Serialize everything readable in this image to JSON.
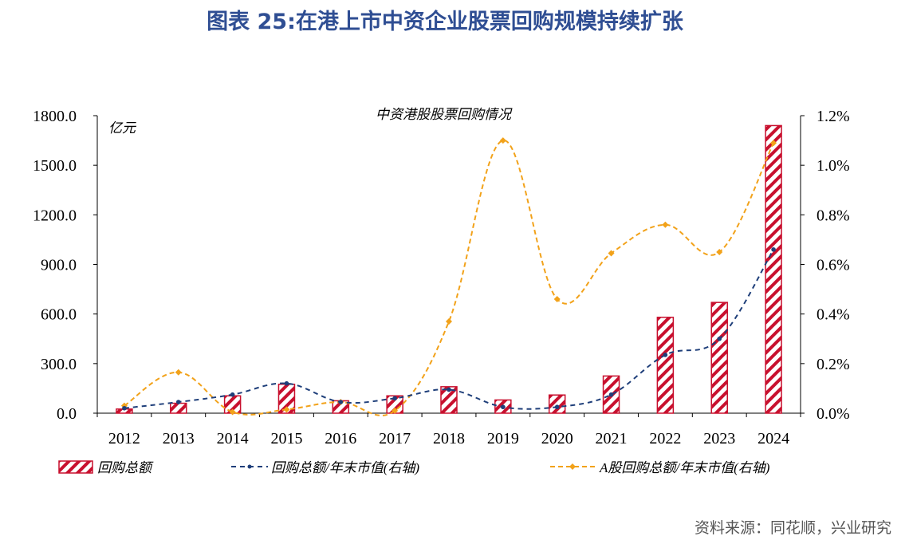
{
  "figure_title": "图表 25:在港上市中资企业股票回购规模持续扩张",
  "source": "资料来源：同花顺，兴业研究",
  "colors": {
    "title": "#2f4e93",
    "bar_stroke": "#c8102e",
    "bar_hatch": "#c8102e",
    "line_blue": "#1f3f7a",
    "line_orange": "#f2a21a",
    "axis": "#000000",
    "source": "#555555"
  },
  "chart_data": {
    "type": "bar",
    "title": "中资港股股票回购情况",
    "left_unit": "亿元",
    "categories": [
      "2012",
      "2013",
      "2014",
      "2015",
      "2016",
      "2017",
      "2018",
      "2019",
      "2020",
      "2021",
      "2022",
      "2023",
      "2024"
    ],
    "left_axis": {
      "min": 0,
      "max": 1800,
      "ticks": [
        "0.0",
        "300.0",
        "600.0",
        "900.0",
        "1200.0",
        "1500.0",
        "1800.0"
      ]
    },
    "right_axis": {
      "min": 0,
      "max": 1.2,
      "ticks": [
        "0.0%",
        "0.2%",
        "0.4%",
        "0.6%",
        "0.8%",
        "1.0%",
        "1.2%"
      ]
    },
    "series": [
      {
        "name": "回购总额",
        "kind": "bar",
        "axis": "left",
        "values": [
          25,
          60,
          105,
          175,
          75,
          105,
          160,
          80,
          110,
          225,
          580,
          670,
          1740
        ]
      },
      {
        "name": "回购总额/年末市值(右轴)",
        "kind": "line",
        "style": "dashed",
        "axis": "right",
        "values": [
          0.02,
          0.045,
          0.075,
          0.12,
          0.045,
          0.06,
          0.095,
          0.025,
          0.025,
          0.075,
          0.235,
          0.3,
          0.66
        ]
      },
      {
        "name": "A股回购总额/年末市值(右轴)",
        "kind": "line",
        "style": "dashed-smooth",
        "axis": "right",
        "values": [
          0.03,
          0.165,
          0.005,
          0.015,
          0.045,
          0.01,
          0.37,
          1.1,
          0.46,
          0.645,
          0.76,
          0.65,
          1.09
        ]
      }
    ],
    "legend_position": "bottom"
  }
}
